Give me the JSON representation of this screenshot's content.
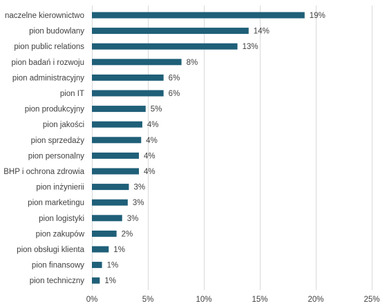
{
  "chart_data": {
    "type": "bar",
    "orientation": "horizontal",
    "categories": [
      "naczelne kierownictwo",
      "pion budowlany",
      "pion public relations",
      "pion badań i rozwoju",
      "pion administracyjny",
      "pion IT",
      "pion produkcyjny",
      "pion jakości",
      "pion sprzedaży",
      "pion personalny",
      "BHP i ochrona zdrowia",
      "pion inżynierii",
      "pion marketingu",
      "pion logistyki",
      "pion zakupów",
      "pion obsługi klienta",
      "pion finansowy",
      "pion techniczny"
    ],
    "values": [
      0.19,
      0.14,
      0.13,
      0.08,
      0.064,
      0.064,
      0.048,
      0.045,
      0.044,
      0.042,
      0.042,
      0.033,
      0.032,
      0.027,
      0.022,
      0.015,
      0.009,
      0.007
    ],
    "value_labels": [
      "19%",
      "14%",
      "13%",
      "8%",
      "6%",
      "6%",
      "5%",
      "4%",
      "4%",
      "4%",
      "4%",
      "3%",
      "3%",
      "3%",
      "2%",
      "1%",
      "1%",
      "1%"
    ],
    "xlim": [
      0,
      0.25
    ],
    "x_ticks": [
      0,
      0.05,
      0.1,
      0.15,
      0.2,
      0.25
    ],
    "x_tick_labels": [
      "0%",
      "5%",
      "10%",
      "15%",
      "20%",
      "25%"
    ],
    "title": "",
    "xlabel": "",
    "ylabel": "",
    "grid": "vertical",
    "legend": "none",
    "bar_color": "#1f5f78"
  }
}
